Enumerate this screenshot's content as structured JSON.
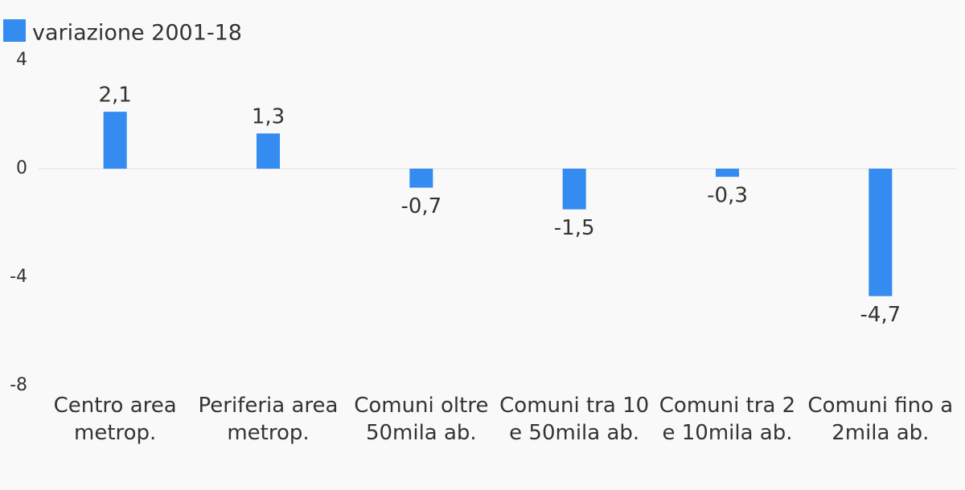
{
  "chart_data": {
    "type": "bar",
    "categories": [
      "Centro area metrop.",
      "Periferia area metrop.",
      "Comuni oltre 50mila ab.",
      "Comuni tra 10 e 50mila ab.",
      "Comuni tra 2 e 10mila ab.",
      "Comuni fino a 2mila ab."
    ],
    "series": [
      {
        "name": "variazione 2001-18",
        "color": "#348cf0",
        "values": [
          2.1,
          1.3,
          -0.7,
          -1.5,
          -0.3,
          -4.7
        ],
        "value_labels": [
          "2,1",
          "1,3",
          "-0,7",
          "-1,5",
          "-0,3",
          "-4,7"
        ]
      }
    ],
    "ylim": [
      -8,
      4
    ],
    "yticks": [
      4,
      0,
      -4,
      -8
    ],
    "grid": false,
    "legend": "top-left"
  }
}
